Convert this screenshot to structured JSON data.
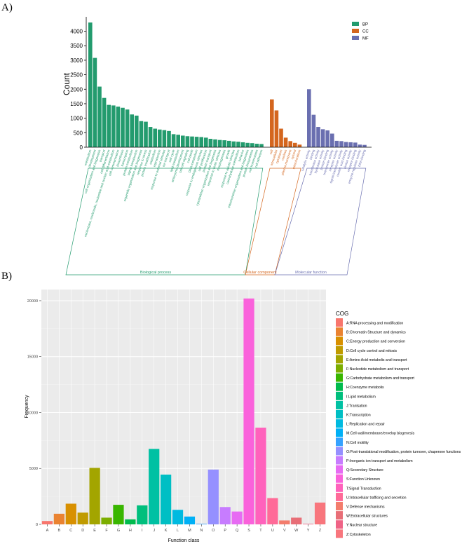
{
  "panel_a_label": "A)",
  "panel_b_label": "B)",
  "colors": {
    "BP": "#239b6e",
    "CC": "#d4661e",
    "MF": "#6a6fb0"
  },
  "chart_data": [
    {
      "type": "bar",
      "title": "",
      "ylabel": "Count",
      "xlabel": "",
      "ylim": [
        0,
        4400
      ],
      "yticks": [
        "0",
        "500",
        "1000",
        "1500",
        "2000",
        "2500",
        "3000",
        "3500",
        "4000"
      ],
      "legend": {
        "placement": "top-right",
        "entries": [
          "BP",
          "CC",
          "MF"
        ]
      },
      "groups": [
        {
          "key": "BP",
          "name": "Biological process"
        },
        {
          "key": "CC",
          "name": "Cellular component"
        },
        {
          "key": "MF",
          "name": "Molecular function"
        }
      ],
      "series": [
        {
          "name": "BP",
          "categories": [
            "metabolism",
            "development",
            "cell organization and biogenesis",
            "transport",
            "cell differentiation",
            "nucleobase, nucleoside, nucleotide and nucleic acid metabolism",
            "cell communication",
            "biosynthesis",
            "transcription",
            "protein metabolism",
            "signal transduction",
            "organelle organization and biogenesis",
            "response to stress",
            "protein modification",
            "catabolism",
            "reproduction",
            "response to external stimulus",
            "ion transport",
            "cell cycle",
            "lipid metabolism",
            "embryonic development",
            "cell-cell signaling",
            "cell death",
            "DNA metabolism",
            "response to endogenous stimulus",
            "cell proliferation",
            "protein transport",
            "cytoskeleton organization and biogenesis",
            "response to biotic stimulus",
            "morphogenesis",
            "growth",
            "response to abiotic stimulus",
            "carbohydrate metabolism",
            "behavior",
            "mitochondrion organization and biogenesis",
            "protein biosynthesis",
            "cell homeostasis",
            "cell adhesion"
          ],
          "values": [
            4300,
            3080,
            2090,
            1700,
            1460,
            1440,
            1400,
            1360,
            1300,
            1130,
            1090,
            900,
            880,
            700,
            640,
            610,
            590,
            560,
            450,
            430,
            400,
            380,
            370,
            360,
            350,
            330,
            290,
            270,
            250,
            240,
            220,
            200,
            190,
            170,
            150,
            140,
            120,
            110
          ]
        },
        {
          "name": "CC",
          "categories": [
            "cell",
            "intracellular",
            "cytoplasm",
            "nucleus",
            "plasma membrane",
            "cytosol",
            "mitochondrion"
          ],
          "values": [
            1650,
            1270,
            640,
            330,
            210,
            150,
            90
          ]
        },
        {
          "name": "MF",
          "categories": [
            "catalytic activity",
            "binding",
            "transferase activity",
            "hydrolase activity",
            "protein binding",
            "transporter activity",
            "receptor activity",
            "signal transducer activity",
            "nucleic acid binding",
            "kinase activity",
            "receptor binding",
            "enzyme regulator activity",
            "DNA binding"
          ],
          "values": [
            2000,
            1120,
            700,
            620,
            580,
            470,
            220,
            210,
            180,
            170,
            160,
            90,
            80
          ]
        }
      ]
    },
    {
      "type": "bar",
      "title": "",
      "xlabel": "Function class",
      "ylabel": "Frequency",
      "ylim": [
        0,
        21000
      ],
      "yticks": [
        "0",
        "5000",
        "10000",
        "15000",
        "20000"
      ],
      "legend": {
        "placement": "right",
        "title": "COG",
        "entries": [
          "A:RNA processing and modification",
          "B:Chromatin Structure and dynamics",
          "C:Energy production and conversion",
          "D:Cell cycle control and mitosis",
          "E:Amino Acid metabolis and transport",
          "F:Nucleotide metabolism and transport",
          "G:Carbohydrate metabolism and transport",
          "H:Coenzyme metabolis",
          "I:Lipid metabolism",
          "J:Tranlsation",
          "K:Transcription",
          "L:Replication and repair",
          "M:Cell wall/membrane/envelop biogenesis",
          "N:Cell motility",
          "O:Post-translational modification, protein turnover, chaperone functions",
          "P:Inorganic ion transport and metabolism",
          "Q:Secondary Structure",
          "S:Function Unknown",
          "T:Signal Transduction",
          "U:Intracellular trafficing and secretion",
          "V:Defense mechanisms",
          "W:Extracellular structures",
          "Y:Nuclear structure",
          "Z:Cytoskeleton"
        ]
      },
      "categories": [
        "A",
        "B",
        "C",
        "D",
        "E",
        "F",
        "G",
        "H",
        "I",
        "J",
        "K",
        "L",
        "M",
        "N",
        "O",
        "P",
        "Q",
        "S",
        "T",
        "U",
        "V",
        "W",
        "Y",
        "Z"
      ],
      "values": [
        300,
        950,
        1850,
        1050,
        5050,
        600,
        1750,
        450,
        1700,
        6750,
        4450,
        1300,
        700,
        50,
        4900,
        1550,
        1150,
        20200,
        8650,
        2350,
        350,
        600,
        50,
        1950
      ],
      "colors": [
        "#f8766d",
        "#ea8331",
        "#d89000",
        "#c09b00",
        "#a3a500",
        "#7cae00",
        "#39b600",
        "#00bb4e",
        "#00bf7d",
        "#00c1a3",
        "#00bfc4",
        "#00bae0",
        "#00b0f6",
        "#35a2ff",
        "#9590ff",
        "#c77cff",
        "#e76bf3",
        "#fa62db",
        "#ff62bc",
        "#ff6a98",
        "#f37c6c",
        "#e86e77",
        "#ef6386",
        "#f8767d"
      ]
    }
  ]
}
